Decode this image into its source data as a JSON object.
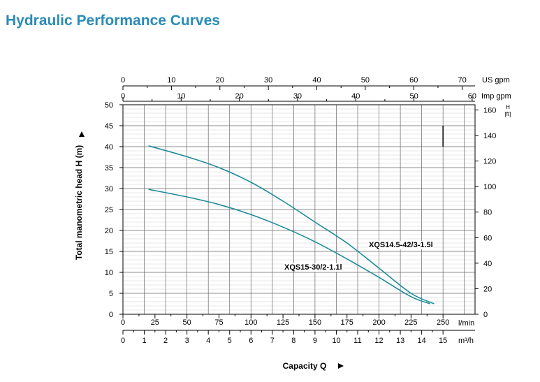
{
  "title": "Hydraulic Performance Curves",
  "chart_data": {
    "type": "line",
    "title": "Hydraulic Performance Curves",
    "xlabel": "Capacity Q",
    "ylabel": "Total manometric head H (m)",
    "xlim_lmin": [
      0,
      275
    ],
    "ylim_m": [
      0,
      50
    ],
    "x_axis_lmin": {
      "unit": "l/min",
      "ticks": [
        0,
        25,
        50,
        75,
        100,
        125,
        150,
        175,
        200,
        225,
        250
      ]
    },
    "x_axis_m3h": {
      "unit": "m³/h",
      "ticks": [
        0,
        1,
        2,
        3,
        4,
        5,
        6,
        7,
        8,
        9,
        10,
        11,
        12,
        13,
        14,
        15
      ]
    },
    "x_axis_usgpm": {
      "unit": "US gpm",
      "ticks": [
        0,
        10,
        20,
        30,
        40,
        50,
        60,
        70
      ]
    },
    "x_axis_impgpm": {
      "unit": "Imp gpm",
      "ticks": [
        0,
        10,
        20,
        30,
        40,
        50,
        60
      ]
    },
    "y_axis_m": {
      "unit": "m",
      "ticks": [
        0,
        5,
        10,
        15,
        20,
        25,
        30,
        35,
        40,
        45,
        50
      ]
    },
    "y_axis_ft": {
      "unit_top": "H",
      "unit_bottom": "[ft]",
      "ticks": [
        0,
        20,
        40,
        60,
        80,
        100,
        120,
        140,
        160
      ]
    },
    "series": [
      {
        "name": "XQS14.5-42/3-1.5l",
        "x": [
          20,
          50,
          75,
          100,
          125,
          150,
          175,
          200,
          225,
          243
        ],
        "y": [
          40.2,
          37.6,
          35.0,
          31.5,
          27.0,
          22.0,
          17.0,
          11.0,
          5.0,
          2.5
        ]
      },
      {
        "name": "XQS15-30/2-1.1l",
        "x": [
          20,
          50,
          75,
          100,
          125,
          150,
          175,
          200,
          225,
          240
        ],
        "y": [
          29.8,
          28.0,
          26.2,
          23.8,
          20.8,
          17.3,
          13.2,
          8.8,
          4.2,
          2.5
        ]
      }
    ],
    "marker_line_lmin": 250,
    "grid": true,
    "line_color": "#1e8c9a"
  }
}
